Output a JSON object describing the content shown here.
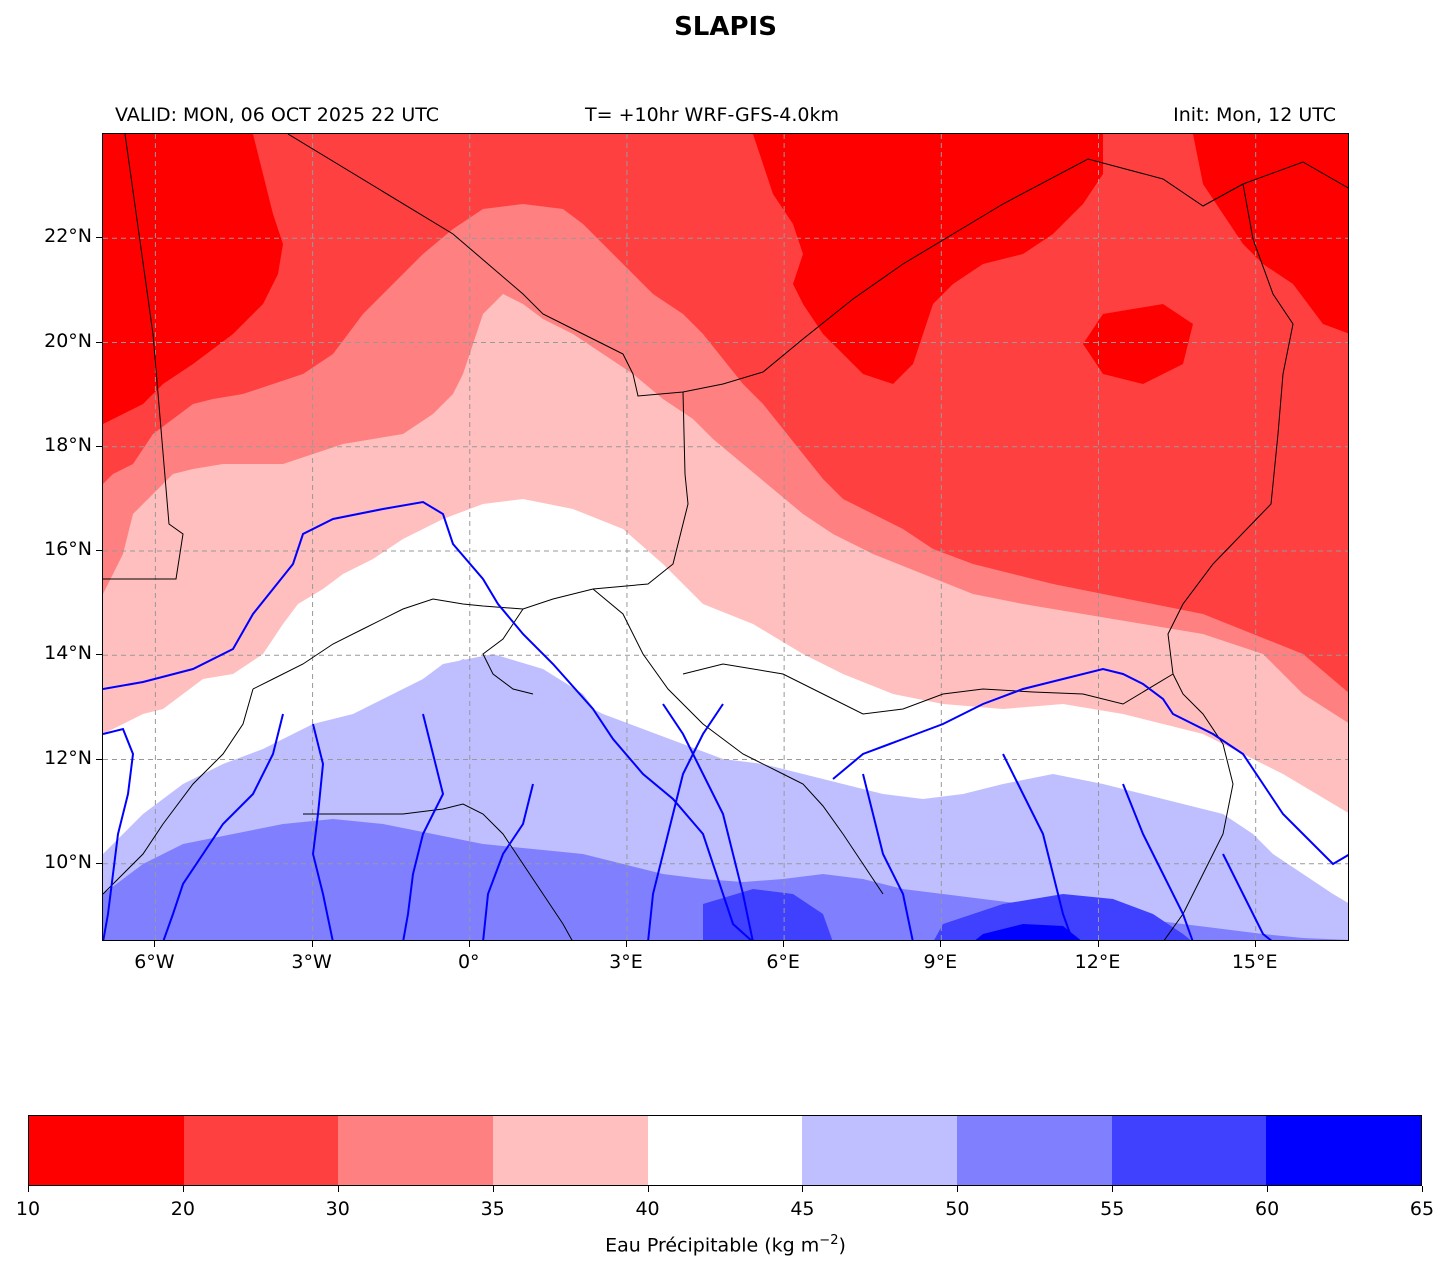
{
  "figure": {
    "title": "SLAPIS",
    "valid_text": "VALID: MON, 06 OCT 2025 22 UTC",
    "run_text": "T= +10hr WRF-GFS-4.0km",
    "init_text": "Init: Mon, 12 UTC"
  },
  "map": {
    "lon_range": [
      -7.0,
      16.8
    ],
    "lat_range": [
      8.5,
      24.0
    ],
    "lat_ticks": [
      {
        "value": 22,
        "label": "22°N"
      },
      {
        "value": 20,
        "label": "20°N"
      },
      {
        "value": 18,
        "label": "18°N"
      },
      {
        "value": 16,
        "label": "16°N"
      },
      {
        "value": 14,
        "label": "14°N"
      },
      {
        "value": 12,
        "label": "12°N"
      },
      {
        "value": 10,
        "label": "10°N"
      }
    ],
    "lon_ticks": [
      {
        "value": -6,
        "label": "6°W"
      },
      {
        "value": -3,
        "label": "3°W"
      },
      {
        "value": 0,
        "label": "0°"
      },
      {
        "value": 3,
        "label": "3°E"
      },
      {
        "value": 6,
        "label": "6°E"
      },
      {
        "value": 9,
        "label": "9°E"
      },
      {
        "value": 12,
        "label": "12°E"
      },
      {
        "value": 15,
        "label": "15°E"
      }
    ],
    "gridlines": true,
    "rivers_color": "#0000ff",
    "borders_color": "#000000"
  },
  "colorbar": {
    "label_main": "Eau Précipitable (kg m",
    "label_exp": "−2",
    "label_close": ")",
    "ticks": [
      "10",
      "20",
      "30",
      "35",
      "40",
      "45",
      "50",
      "55",
      "60",
      "65"
    ],
    "levels": [
      10,
      20,
      30,
      35,
      40,
      45,
      50,
      55,
      60,
      65
    ],
    "colors": [
      "#ff0000",
      "#ff4040",
      "#ff8080",
      "#ffbfbf",
      "#ffffff",
      "#bfbfff",
      "#8080ff",
      "#4040ff",
      "#0000ff"
    ]
  }
}
